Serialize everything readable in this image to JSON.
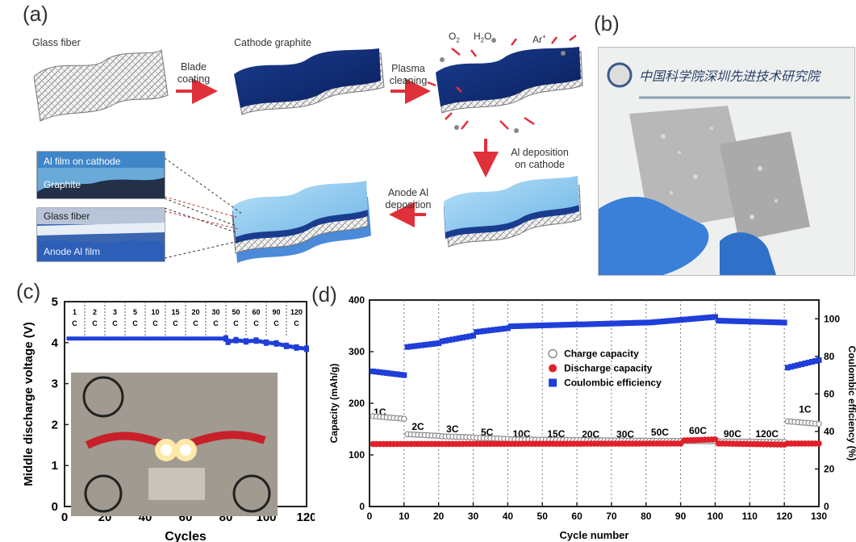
{
  "panels": {
    "a": "(a)",
    "b": "(b)",
    "c": "(c)",
    "d": "(d)"
  },
  "panel_a": {
    "glass_fiber": "Glass fiber",
    "cathode_graphite": "Cathode graphite",
    "blade_coating": [
      "Blade",
      "coating"
    ],
    "plasma_cleaning": [
      "Plasma",
      "cleaning"
    ],
    "gases": {
      "o2": "O",
      "o2_sub": "2",
      "h2o_h": "H",
      "h2o_sub": "2",
      "h2o_o": "O",
      "ar": "Ar",
      "ar_sup": "+"
    },
    "al_deposition": [
      "Al deposition",
      "on cathode"
    ],
    "anode_al": [
      "Anode Al",
      "deposition"
    ],
    "inset_top": {
      "line1": "Al film on cathode",
      "line2": "Graphite"
    },
    "inset_bottom": {
      "line1": "Glass fiber",
      "line2": "Anode Al film"
    }
  },
  "panel_b": {
    "photo_text": "中国科学院深圳先进技术研究院"
  },
  "colors": {
    "blue": "#1f3fd8",
    "red": "#e0202a",
    "hollow": "#8c8c8c",
    "dark_navy": "#0d2a6e",
    "light_blue": "#8fc8ee"
  },
  "chart_data": [
    {
      "type": "line",
      "panel": "(c)",
      "xlabel": "Cycles",
      "ylabel": "Middle discharge voltage (V)",
      "xlim": [
        0,
        120
      ],
      "ylim": [
        0,
        5
      ],
      "xticks": [
        0,
        20,
        40,
        60,
        80,
        100,
        120
      ],
      "yticks": [
        0,
        1,
        2,
        3,
        4,
        5
      ],
      "rate_labels": [
        {
          "num": "1",
          "unit": "C"
        },
        {
          "num": "2",
          "unit": "C"
        },
        {
          "num": "3",
          "unit": "C"
        },
        {
          "num": "5",
          "unit": "C"
        },
        {
          "num": "10",
          "unit": "C"
        },
        {
          "num": "15",
          "unit": "C"
        },
        {
          "num": "20",
          "unit": "C"
        },
        {
          "num": "30",
          "unit": "C"
        },
        {
          "num": "50",
          "unit": "C"
        },
        {
          "num": "60",
          "unit": "C"
        },
        {
          "num": "90",
          "unit": "C"
        },
        {
          "num": "120",
          "unit": "C"
        }
      ],
      "rate_boundaries": [
        10,
        20,
        30,
        40,
        50,
        60,
        70,
        80,
        90,
        100,
        110
      ],
      "series": [
        {
          "values": [
            [
              1,
              4.1
            ],
            [
              10,
              4.1
            ],
            [
              20,
              4.1
            ],
            [
              30,
              4.1
            ],
            [
              40,
              4.1
            ],
            [
              50,
              4.1
            ],
            [
              60,
              4.1
            ],
            [
              70,
              4.1
            ],
            [
              80,
              4.1
            ],
            [
              81,
              4.02
            ],
            [
              85,
              4.06
            ],
            [
              90,
              4.03
            ],
            [
              95,
              4.05
            ],
            [
              100,
              4.0
            ],
            [
              105,
              3.98
            ],
            [
              110,
              3.92
            ],
            [
              115,
              3.88
            ],
            [
              120,
              3.85
            ]
          ]
        }
      ],
      "grid": "dashed vertical dividers",
      "inset": "photo of two glowing LEDs"
    },
    {
      "type": "scatter",
      "panel": "(d)",
      "xlabel": "Cycle number",
      "ylabel": "Capacity (mAh/g)",
      "y2label": "Coulombic efficiency (%)",
      "xlim": [
        0,
        130
      ],
      "ylim": [
        0,
        400
      ],
      "y2lim": [
        0,
        110
      ],
      "xticks": [
        0,
        10,
        20,
        30,
        40,
        50,
        60,
        70,
        80,
        90,
        100,
        110,
        120,
        130
      ],
      "yticks": [
        0,
        100,
        200,
        300,
        400
      ],
      "y2ticks": [
        0,
        20,
        40,
        60,
        80,
        100
      ],
      "rate_labels": [
        {
          "text": "1C",
          "x": 3,
          "y": 183
        },
        {
          "text": "2C",
          "x": 14,
          "y": 155
        },
        {
          "text": "3C",
          "x": 24,
          "y": 150
        },
        {
          "text": "5C",
          "x": 34,
          "y": 144
        },
        {
          "text": "10C",
          "x": 44,
          "y": 141
        },
        {
          "text": "15C",
          "x": 54,
          "y": 141
        },
        {
          "text": "20C",
          "x": 64,
          "y": 140
        },
        {
          "text": "30C",
          "x": 74,
          "y": 140
        },
        {
          "text": "50C",
          "x": 84,
          "y": 144
        },
        {
          "text": "60C",
          "x": 95,
          "y": 147
        },
        {
          "text": "90C",
          "x": 105,
          "y": 141
        },
        {
          "text": "120C",
          "x": 115,
          "y": 141
        },
        {
          "text": "1C",
          "x": 126,
          "y": 188
        }
      ],
      "rate_boundaries": [
        10,
        20,
        30,
        40,
        50,
        60,
        70,
        80,
        90,
        100,
        110,
        120
      ],
      "legend": {
        "position": "center",
        "entries": [
          "Charge capacity",
          "Discharge capacity",
          "Coulombic efficiency"
        ]
      },
      "series": [
        {
          "name": "Charge capacity",
          "marker": "hollow-circle",
          "axis": "left",
          "segments": [
            {
              "x": [
                1,
                10
              ],
              "y": [
                175,
                170
              ]
            },
            {
              "x": [
                11,
                20
              ],
              "y": [
                140,
                137
              ]
            },
            {
              "x": [
                21,
                30
              ],
              "y": [
                136,
                134
              ]
            },
            {
              "x": [
                31,
                40
              ],
              "y": [
                133,
                131
              ]
            },
            {
              "x": [
                41,
                120
              ],
              "y": [
                130,
                125
              ]
            },
            {
              "x": [
                121,
                130
              ],
              "y": [
                165,
                160
              ]
            }
          ]
        },
        {
          "name": "Discharge capacity",
          "marker": "filled-circle",
          "axis": "left",
          "segments": [
            {
              "x": [
                1,
                90
              ],
              "y": [
                121,
                122
              ]
            },
            {
              "x": [
                91,
                100
              ],
              "y": [
                128,
                130
              ]
            },
            {
              "x": [
                101,
                120
              ],
              "y": [
                122,
                120
              ]
            },
            {
              "x": [
                121,
                130
              ],
              "y": [
                122,
                122
              ]
            }
          ]
        },
        {
          "name": "Coulombic efficiency",
          "marker": "filled-square",
          "axis": "right",
          "segments": [
            {
              "x": [
                1,
                10
              ],
              "y": [
                72,
                70
              ]
            },
            {
              "x": [
                11,
                20
              ],
              "y": [
                85,
                87
              ]
            },
            {
              "x": [
                21,
                30
              ],
              "y": [
                88,
                91
              ]
            },
            {
              "x": [
                31,
                40
              ],
              "y": [
                93,
                95
              ]
            },
            {
              "x": [
                41,
                60
              ],
              "y": [
                96,
                97
              ]
            },
            {
              "x": [
                61,
                80
              ],
              "y": [
                97,
                98
              ]
            },
            {
              "x": [
                81,
                100
              ],
              "y": [
                98,
                101
              ]
            },
            {
              "x": [
                101,
                120
              ],
              "y": [
                99,
                98
              ]
            },
            {
              "x": [
                121,
                130
              ],
              "y": [
                74,
                78
              ]
            }
          ]
        }
      ]
    }
  ]
}
